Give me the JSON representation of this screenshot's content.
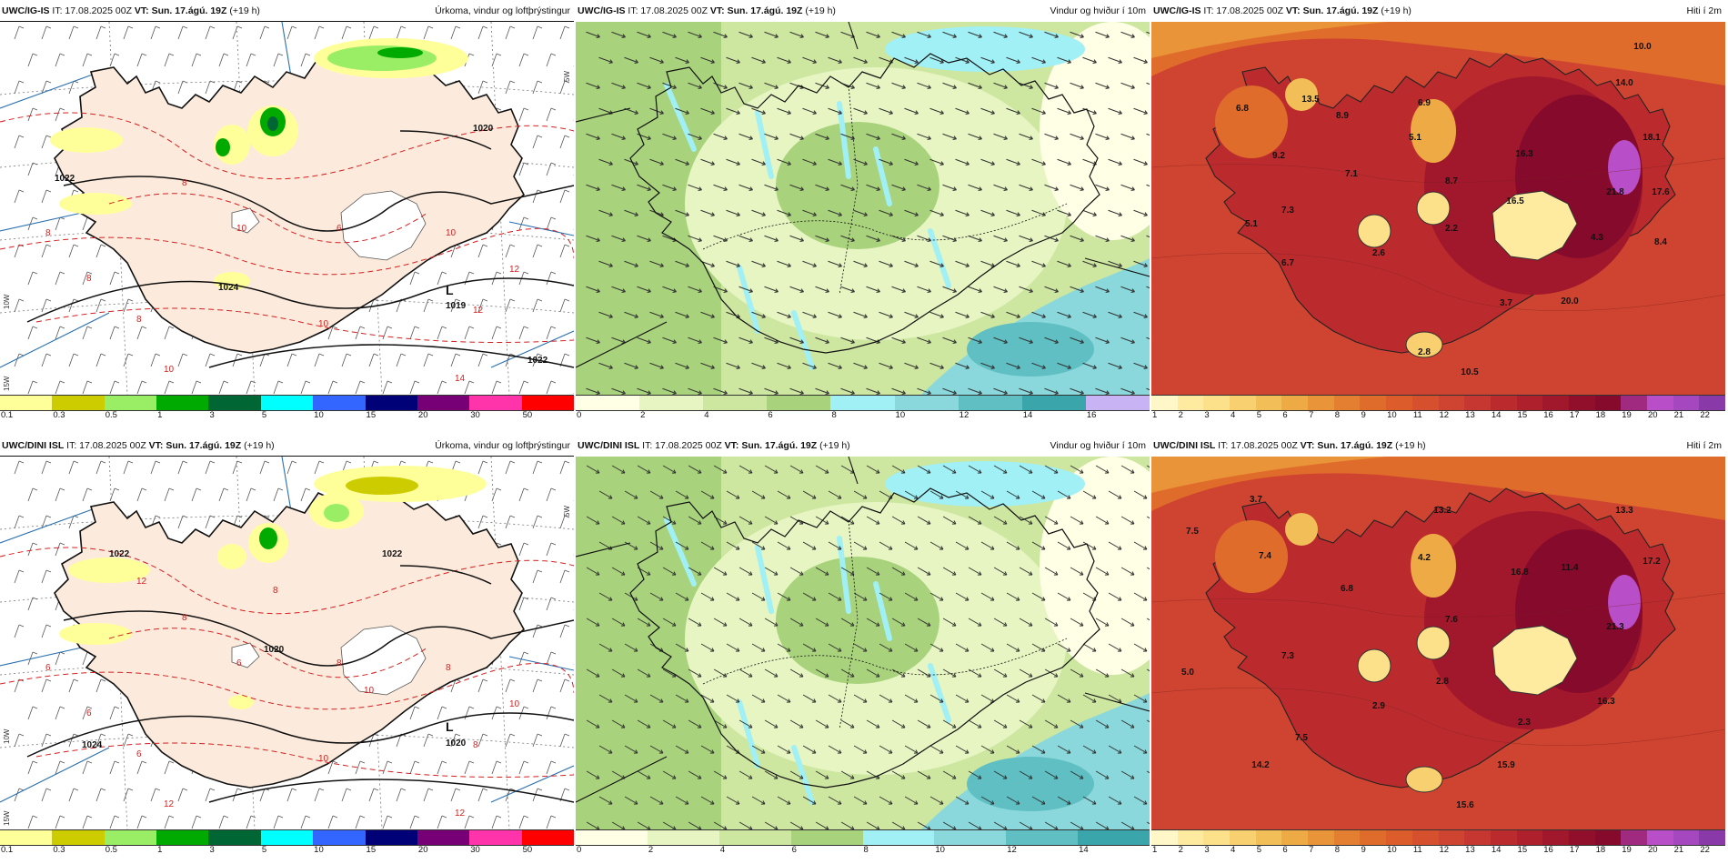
{
  "rows": [
    {
      "model": "UWC/IG-IS",
      "it": "17.08.2025 00Z",
      "vt": "Sun. 17.ágú. 19Z",
      "lead": "(+19 h)",
      "precip": {
        "isobar_labels": [
          "1022",
          "1020",
          "1024",
          "1022",
          "L",
          "1019"
        ],
        "temp_labels": [
          "8",
          "8",
          "8",
          "8",
          "6",
          "10",
          "10",
          "10",
          "12",
          "12",
          "10",
          "14"
        ],
        "lon_labels": [
          "15W",
          "10W",
          "5W"
        ]
      },
      "temp": {
        "spot_values": [
          "10.0",
          "14.0",
          "6.8",
          "13.5",
          "8.9",
          "6.9",
          "5.1",
          "9.2",
          "7.1",
          "16.3",
          "18.1",
          "8.7",
          "16.5",
          "21.8",
          "17.6",
          "7.3",
          "5.1",
          "2.2",
          "2.6",
          "4.3",
          "8.4",
          "6.7",
          "3.7",
          "20.0",
          "2.8",
          "10.5"
        ]
      }
    },
    {
      "model": "UWC/DINI ISL",
      "it": "17.08.2025 00Z",
      "vt": "Sun. 17.ágú. 19Z",
      "lead": "(+19 h)",
      "precip": {
        "isobar_labels": [
          "1022",
          "1022",
          "1020",
          "1024",
          "L",
          "1020"
        ],
        "temp_labels": [
          "6",
          "6",
          "6",
          "8",
          "8",
          "8",
          "10",
          "12",
          "10",
          "8",
          "6",
          "12",
          "8",
          "10",
          "12"
        ],
        "lon_labels": [
          "15W",
          "10W",
          "5W"
        ]
      },
      "temp": {
        "spot_values": [
          "3.7",
          "7.5",
          "13.2",
          "13.3",
          "7.4",
          "4.2",
          "16.8",
          "11.4",
          "17.2",
          "6.8",
          "7.6",
          "21.3",
          "7.3",
          "5.0",
          "2.8",
          "2.9",
          "16.3",
          "2.3",
          "7.5",
          "14.2",
          "15.9",
          "15.6"
        ]
      }
    }
  ],
  "panels": {
    "precip": {
      "title": "Úrkoma, vindur og loftþrýstingur",
      "scale_ticks": [
        "0.1",
        "0.3",
        "0.5",
        "1",
        "3",
        "5",
        "10",
        "15",
        "20",
        "30",
        "50"
      ],
      "scale_colors": [
        "#ffff9a",
        "#cccc00",
        "#99ee66",
        "#00aa00",
        "#006633",
        "#00ffff",
        "#3366ff",
        "#000077",
        "#770077",
        "#ff33aa",
        "#ff0000"
      ]
    },
    "wind": {
      "title": "Vindur og hviður í 10m",
      "ticks_top": [
        "0",
        "2",
        "4",
        "6",
        "8",
        "10",
        "12",
        "14",
        "16"
      ],
      "colors_top": [
        "#ffffe5",
        "#e6f5c2",
        "#cde6a0",
        "#a8d27c",
        "#a0f0f5",
        "#8ad8dc",
        "#5fbfc3",
        "#3aa5aa",
        "#c8b4f5"
      ],
      "ticks_bottom": [
        "0",
        "2",
        "4",
        "6",
        "8",
        "10",
        "12",
        "14"
      ],
      "colors_bottom": [
        "#ffffe5",
        "#e6f5c2",
        "#cde6a0",
        "#a8d27c",
        "#a0f0f5",
        "#8ad8dc",
        "#5fbfc3",
        "#3aa5aa"
      ]
    },
    "temp": {
      "title": "Hiti í 2m",
      "scale_ticks": [
        "1",
        "2",
        "3",
        "4",
        "5",
        "6",
        "7",
        "8",
        "9",
        "10",
        "11",
        "12",
        "13",
        "14",
        "15",
        "16",
        "17",
        "18",
        "19",
        "20",
        "21",
        "22"
      ],
      "scale_colors": [
        "#fff7c8",
        "#ffeba0",
        "#fde08a",
        "#f8d070",
        "#f2be58",
        "#eeab45",
        "#e99438",
        "#e47e30",
        "#e06c2c",
        "#dc5c2c",
        "#d6502e",
        "#cf4430",
        "#c53730",
        "#bb2b2e",
        "#ae202c",
        "#a1172b",
        "#920f2b",
        "#850a2c",
        "#a02a80",
        "#b84ec8",
        "#a548c0",
        "#8a3aa8"
      ]
    }
  }
}
